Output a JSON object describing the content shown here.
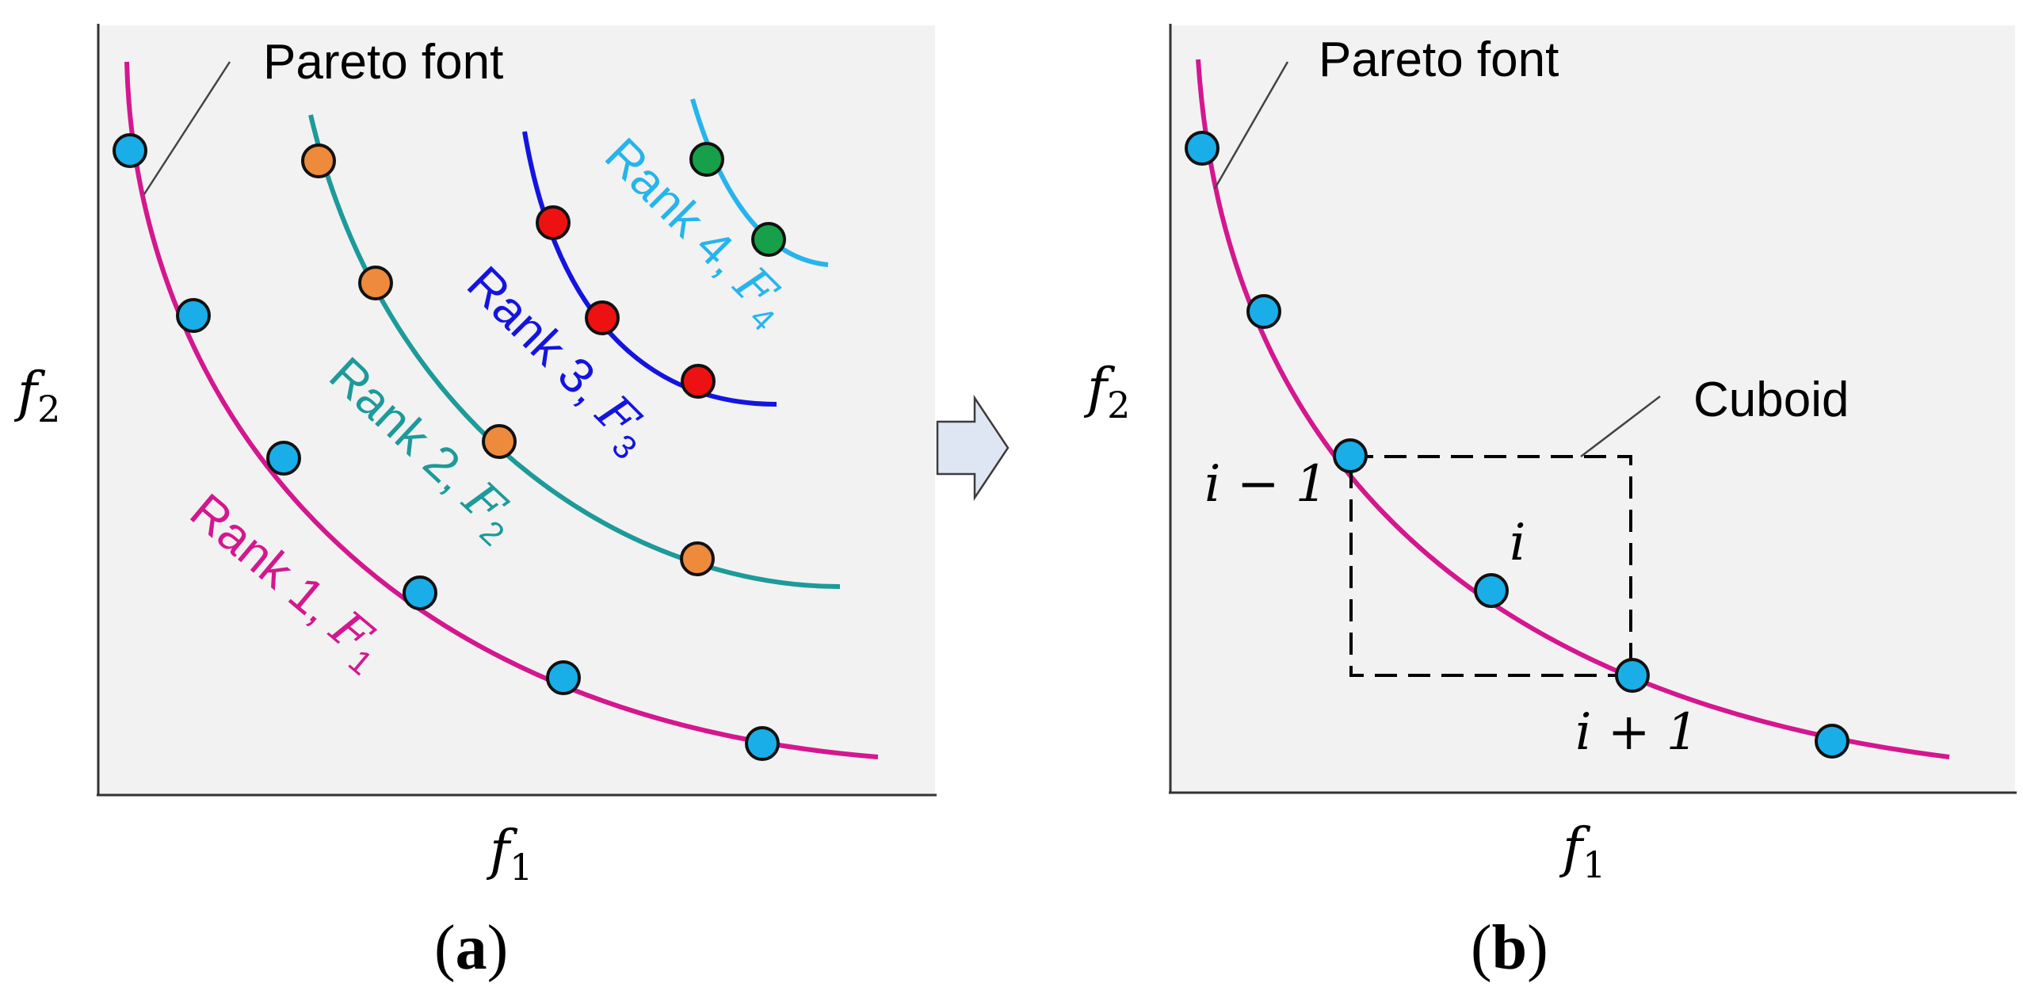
{
  "panel_a": {
    "caption_open": "(",
    "caption_letter": "a",
    "caption_close": ")",
    "callout": "Pareto font",
    "x_axis": "f",
    "x_sub": "1",
    "y_axis": "f",
    "y_sub": "2",
    "ranks": [
      {
        "label": "Rank 1, ",
        "sym": "F",
        "sub": "1",
        "color": "#d4178f",
        "dot": "#1aaee8"
      },
      {
        "label": "Rank 2, ",
        "sym": "F",
        "sub": "2",
        "color": "#1d9a9a",
        "dot": "#ee8a3c"
      },
      {
        "label": "Rank 3, ",
        "sym": "F",
        "sub": "3",
        "color": "#1414e0",
        "dot": "#ee1111"
      },
      {
        "label": "Rank 4, ",
        "sym": "F",
        "sub": "4",
        "color": "#27b4ec",
        "dot": "#17a04a"
      }
    ]
  },
  "panel_b": {
    "caption_open": "(",
    "caption_letter": "b",
    "caption_close": ")",
    "callout": "Pareto font",
    "cuboid_label": "Cuboid",
    "point_prev": "i − 1",
    "point_i": "i",
    "point_next": "i + 1",
    "x_axis": "f",
    "x_sub": "1",
    "y_axis": "f",
    "y_sub": "2",
    "curve_color": "#d4178f",
    "dot": "#1aaee8"
  },
  "colors": {
    "plot_bg": "#f2f2f2",
    "arrow_fill": "#dfe6f3",
    "arrow_stroke": "#3c3c3c"
  }
}
